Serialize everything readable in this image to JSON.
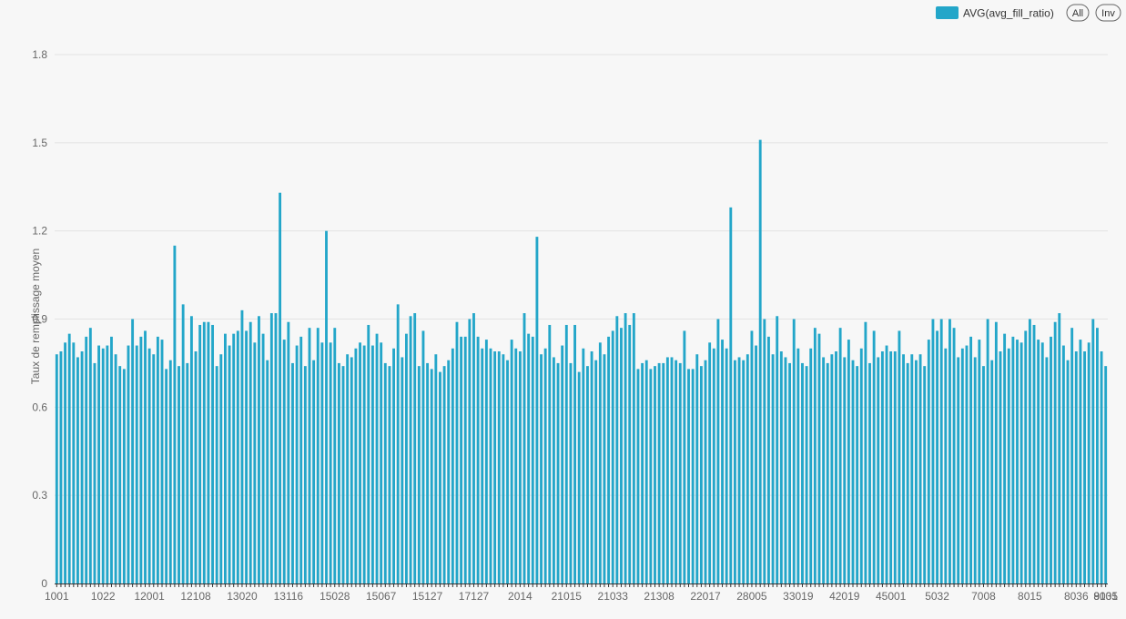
{
  "chart_data": {
    "type": "bar",
    "title": "",
    "xlabel": "",
    "ylabel": "Taux de remplissage moyen",
    "ylim": [
      0,
      1.8
    ],
    "yticks": [
      0,
      0.3,
      0.6,
      0.9,
      1.2,
      1.5,
      1.8
    ],
    "grid": true,
    "legend_position": "top-right",
    "series": [
      {
        "name": "AVG(avg_fill_ratio)",
        "color": "#23a6c9",
        "values": [
          0.78,
          0.79,
          0.82,
          0.85,
          0.82,
          0.77,
          0.79,
          0.84,
          0.87,
          0.75,
          0.81,
          0.8,
          0.81,
          0.84,
          0.78,
          0.74,
          0.73,
          0.81,
          0.9,
          0.81,
          0.84,
          0.86,
          0.8,
          0.78,
          0.84,
          0.83,
          0.73,
          0.76,
          1.15,
          0.74,
          0.95,
          0.75,
          0.91,
          0.79,
          0.88,
          0.89,
          0.89,
          0.88,
          0.74,
          0.78,
          0.85,
          0.81,
          0.85,
          0.86,
          0.93,
          0.86,
          0.89,
          0.82,
          0.91,
          0.85,
          0.76,
          0.92,
          0.92,
          1.33,
          0.83,
          0.89,
          0.75,
          0.81,
          0.84,
          0.74,
          0.87,
          0.76,
          0.87,
          0.82,
          1.2,
          0.82,
          0.87,
          0.75,
          0.74,
          0.78,
          0.77,
          0.8,
          0.82,
          0.81,
          0.88,
          0.81,
          0.85,
          0.82,
          0.75,
          0.74,
          0.8,
          0.95,
          0.77,
          0.85,
          0.91,
          0.92,
          0.74,
          0.86,
          0.75,
          0.73,
          0.78,
          0.72,
          0.74,
          0.76,
          0.8,
          0.89,
          0.84,
          0.84,
          0.9,
          0.92,
          0.84,
          0.8,
          0.83,
          0.8,
          0.79,
          0.79,
          0.78,
          0.76,
          0.83,
          0.8,
          0.79,
          0.92,
          0.85,
          0.84,
          1.18,
          0.78,
          0.8,
          0.88,
          0.77,
          0.75,
          0.81,
          0.88,
          0.75,
          0.88,
          0.72,
          0.8,
          0.74,
          0.79,
          0.76,
          0.82,
          0.78,
          0.84,
          0.86,
          0.91,
          0.87,
          0.92,
          0.88,
          0.92,
          0.73,
          0.75,
          0.76,
          0.73,
          0.74,
          0.75,
          0.75,
          0.77,
          0.77,
          0.76,
          0.75,
          0.86,
          0.73,
          0.73,
          0.78,
          0.74,
          0.76,
          0.82,
          0.8,
          0.9,
          0.83,
          0.8,
          1.28,
          0.76,
          0.77,
          0.76,
          0.78,
          0.86,
          0.81,
          1.51,
          0.9,
          0.84,
          0.78,
          0.91,
          0.79,
          0.77,
          0.75,
          0.9,
          0.8,
          0.75,
          0.74,
          0.8,
          0.87,
          0.85,
          0.77,
          0.75,
          0.78,
          0.79,
          0.87,
          0.77,
          0.83,
          0.76,
          0.74,
          0.8,
          0.89,
          0.75,
          0.86,
          0.77,
          0.79,
          0.81,
          0.79,
          0.79,
          0.86,
          0.78,
          0.75,
          0.78,
          0.76,
          0.78,
          0.74,
          0.83,
          0.9,
          0.86,
          0.9,
          0.8,
          0.9,
          0.87,
          0.77,
          0.8,
          0.81,
          0.84,
          0.77,
          0.83,
          0.74,
          0.9,
          0.76,
          0.89,
          0.79,
          0.85,
          0.8,
          0.84,
          0.83,
          0.82,
          0.86,
          0.9,
          0.88,
          0.83,
          0.82,
          0.77,
          0.84,
          0.89,
          0.92,
          0.81,
          0.76,
          0.87,
          0.79,
          0.83,
          0.79,
          0.82,
          0.9,
          0.87,
          0.79,
          0.74
        ]
      }
    ],
    "x_tick_labels": [
      "1001",
      "1022",
      "12001",
      "12108",
      "13020",
      "13116",
      "15028",
      "15067",
      "15127",
      "17127",
      "2014",
      "21015",
      "21033",
      "21308",
      "22017",
      "28005",
      "33019",
      "42019",
      "45001",
      "5032",
      "7008",
      "8015",
      "8036",
      "8105",
      "9031"
    ],
    "legend_buttons": [
      "All",
      "Inv"
    ]
  }
}
